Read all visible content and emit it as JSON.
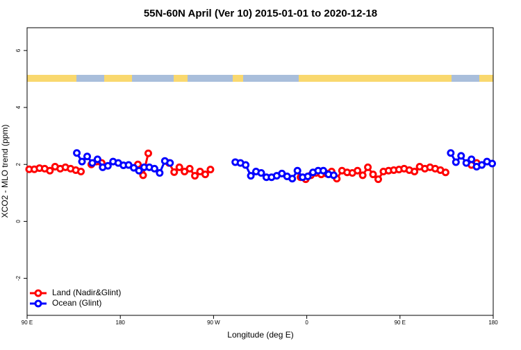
{
  "chart_data": {
    "type": "line",
    "title": "55N-60N April (Ver 10)   2015-01-01 to 2020-12-18",
    "x_label": "Longitude (deg E)",
    "y_label": "XCO2 - MLO trend (ppm)",
    "xlim": [
      90,
      540
    ],
    "ylim": [
      -3.3,
      6.8
    ],
    "xticks": [
      {
        "value": 90,
        "label": "90 E"
      },
      {
        "value": 180,
        "label": "180"
      },
      {
        "value": 270,
        "label": "90 W"
      },
      {
        "value": 360,
        "label": "0"
      },
      {
        "value": 450,
        "label": "90 E"
      },
      {
        "value": 540,
        "label": "180"
      }
    ],
    "yticks": [
      -2,
      0,
      2,
      4,
      6
    ],
    "legend": "bottom-left",
    "series": [
      {
        "name": "Land (Nadir&Glint)",
        "color": "#ff0000",
        "x": [
          92,
          97,
          102,
          107,
          112,
          117,
          122,
          127,
          132,
          137,
          142,
          null,
          152,
          157,
          162,
          null,
          197,
          202,
          207,
          null,
          227,
          232,
          237,
          242,
          247,
          252,
          257,
          262,
          267,
          null,
          354,
          359,
          null,
          364,
          369,
          374,
          379,
          384,
          389,
          394,
          399,
          404,
          409,
          414,
          419,
          424,
          429,
          434,
          439,
          444,
          449,
          454,
          459,
          464,
          469,
          474,
          479,
          484,
          489,
          494,
          null,
          519,
          524
        ],
        "values": [
          1.83,
          1.83,
          1.87,
          1.85,
          1.78,
          1.92,
          1.85,
          1.9,
          1.85,
          1.8,
          1.75,
          null,
          2.0,
          2.1,
          2.05,
          null,
          2.0,
          1.62,
          2.39,
          null,
          2.05,
          1.73,
          1.9,
          1.75,
          1.85,
          1.6,
          1.75,
          1.65,
          1.82,
          null,
          1.55,
          1.48,
          null,
          1.62,
          1.7,
          1.65,
          1.68,
          1.75,
          1.5,
          1.78,
          1.72,
          1.7,
          1.78,
          1.62,
          1.9,
          1.65,
          1.48,
          1.75,
          1.78,
          1.8,
          1.82,
          1.85,
          1.8,
          1.75,
          1.92,
          1.85,
          1.9,
          1.85,
          1.8,
          1.72,
          null,
          1.98,
          2.05
        ]
      },
      {
        "name": "Ocean (Glint)",
        "color": "#0000ff",
        "x": [
          138,
          143,
          148,
          153,
          158,
          163,
          168,
          173,
          178,
          183,
          188,
          193,
          198,
          203,
          208,
          213,
          218,
          223,
          228,
          null,
          291,
          296,
          301,
          306,
          311,
          316,
          321,
          326,
          331,
          336,
          341,
          346,
          351,
          356,
          361,
          366,
          371,
          376,
          381,
          386,
          null,
          499,
          504,
          509,
          514,
          519,
          524,
          529,
          534,
          539
        ],
        "values": [
          2.4,
          2.1,
          2.28,
          2.05,
          2.18,
          1.9,
          1.95,
          2.1,
          2.05,
          1.97,
          1.98,
          1.88,
          1.78,
          1.9,
          1.9,
          1.85,
          1.7,
          2.12,
          2.05,
          null,
          2.08,
          2.05,
          1.98,
          1.6,
          1.75,
          1.7,
          1.55,
          1.55,
          1.6,
          1.68,
          1.58,
          1.5,
          1.78,
          1.55,
          1.58,
          1.72,
          1.78,
          1.78,
          1.65,
          1.62,
          null,
          2.4,
          2.08,
          2.3,
          2.05,
          2.18,
          1.92,
          1.98,
          2.1,
          2.03
        ]
      }
    ]
  }
}
